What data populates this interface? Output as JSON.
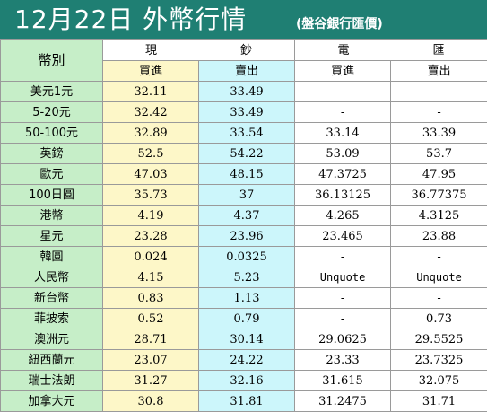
{
  "title": {
    "main": "12月22日 外幣行情",
    "source": "(盤谷銀行匯價)"
  },
  "header": {
    "currency": "幣別",
    "cash": "現　鈔",
    "transfer": "電　匯",
    "buy": "買進",
    "sell": "賣出"
  },
  "rows": [
    {
      "currency": "美元1元",
      "cash_buy": "32.11",
      "cash_sell": "33.49",
      "tt_buy": "-",
      "tt_sell": "-"
    },
    {
      "currency": "5-20元",
      "cash_buy": "32.42",
      "cash_sell": "33.49",
      "tt_buy": "-",
      "tt_sell": "-"
    },
    {
      "currency": "50-100元",
      "cash_buy": "32.89",
      "cash_sell": "33.54",
      "tt_buy": "33.14",
      "tt_sell": "33.39"
    },
    {
      "currency": "英鎊",
      "cash_buy": "52.5",
      "cash_sell": "54.22",
      "tt_buy": "53.09",
      "tt_sell": "53.7"
    },
    {
      "currency": "歐元",
      "cash_buy": "47.03",
      "cash_sell": "48.15",
      "tt_buy": "47.3725",
      "tt_sell": "47.95"
    },
    {
      "currency": "100日圓",
      "cash_buy": "35.73",
      "cash_sell": "37",
      "tt_buy": "36.13125",
      "tt_sell": "36.77375"
    },
    {
      "currency": "港幣",
      "cash_buy": "4.19",
      "cash_sell": "4.37",
      "tt_buy": "4.265",
      "tt_sell": "4.3125"
    },
    {
      "currency": "星元",
      "cash_buy": "23.28",
      "cash_sell": "23.96",
      "tt_buy": "23.465",
      "tt_sell": "23.88"
    },
    {
      "currency": "韓圓",
      "cash_buy": "0.024",
      "cash_sell": "0.0325",
      "tt_buy": "-",
      "tt_sell": "-"
    },
    {
      "currency": "人民幣",
      "cash_buy": "4.15",
      "cash_sell": "5.23",
      "tt_buy": "Unquote",
      "tt_sell": "Unquote"
    },
    {
      "currency": "新台幣",
      "cash_buy": "0.83",
      "cash_sell": "1.13",
      "tt_buy": "-",
      "tt_sell": "-"
    },
    {
      "currency": "菲披索",
      "cash_buy": "0.52",
      "cash_sell": "0.79",
      "tt_buy": "-",
      "tt_sell": "0.73"
    },
    {
      "currency": "澳洲元",
      "cash_buy": "28.71",
      "cash_sell": "30.14",
      "tt_buy": "29.0625",
      "tt_sell": "29.5525"
    },
    {
      "currency": "紐西蘭元",
      "cash_buy": "23.07",
      "cash_sell": "24.22",
      "tt_buy": "23.33",
      "tt_sell": "23.7325"
    },
    {
      "currency": "瑞士法朗",
      "cash_buy": "31.27",
      "cash_sell": "32.16",
      "tt_buy": "31.615",
      "tt_sell": "32.075"
    },
    {
      "currency": "加拿大元",
      "cash_buy": "30.8",
      "cash_sell": "31.81",
      "tt_buy": "31.2475",
      "tt_sell": "31.71"
    }
  ],
  "colors": {
    "title_bg": "#1f7f73",
    "name_col": "#c6eec8",
    "cash_buy_col": "#fdf7c8",
    "cash_sell_col": "#ccf6fb"
  }
}
